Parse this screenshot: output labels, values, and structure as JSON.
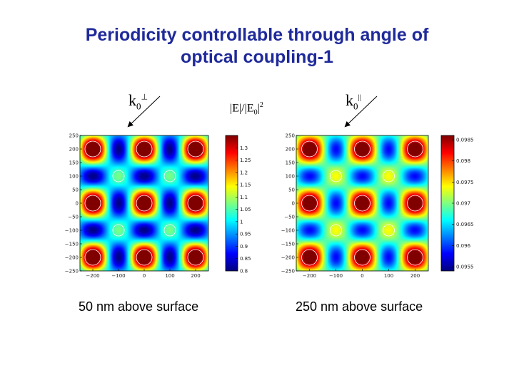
{
  "slide": {
    "title_line1": "Periodicity controllable through angle of",
    "title_line2": "optical coupling-1",
    "intensity_label_main": "|E|/|E",
    "intensity_label_sub": "0",
    "intensity_label_end": "|",
    "intensity_label_sup": "2",
    "k_left_main": "k",
    "k_left_sub": "0",
    "k_left_sup": "⊥",
    "k_right_main": "k",
    "k_right_sub": "0",
    "k_right_sup": "||",
    "caption_left": "50 nm above surface",
    "caption_right": "250 nm above surface"
  },
  "chart_data": [
    {
      "type": "heatmap",
      "x_ticks": [
        "-200",
        "-100",
        "0",
        "100",
        "200"
      ],
      "y_ticks": [
        "250",
        "200",
        "150",
        "100",
        "50",
        "0",
        "-50",
        "-100",
        "-150",
        "-200",
        "-250"
      ],
      "xlim": [
        -250,
        250
      ],
      "ylim": [
        -250,
        250
      ],
      "colorbar_ticks": [
        "1.3",
        "1.25",
        "1.2",
        "1.15",
        "1.1",
        "1.05",
        "1",
        "0.95",
        "0.9",
        "0.85",
        "0.8"
      ],
      "colorbar_range": [
        0.8,
        1.35
      ],
      "colormap": "jet"
    },
    {
      "type": "heatmap",
      "x_ticks": [
        "-200",
        "-100",
        "0",
        "100",
        "200"
      ],
      "y_ticks": [
        "250",
        "200",
        "150",
        "100",
        "50",
        "0",
        "-50",
        "-100",
        "-150",
        "-200",
        "-250"
      ],
      "xlim": [
        -250,
        250
      ],
      "ylim": [
        -250,
        250
      ],
      "colorbar_ticks": [
        "0.0985",
        "0.098",
        "0.0975",
        "0.097",
        "0.0965",
        "0.096",
        "0.0955"
      ],
      "colorbar_range": [
        0.0954,
        0.0986
      ],
      "colormap": "jet"
    }
  ]
}
